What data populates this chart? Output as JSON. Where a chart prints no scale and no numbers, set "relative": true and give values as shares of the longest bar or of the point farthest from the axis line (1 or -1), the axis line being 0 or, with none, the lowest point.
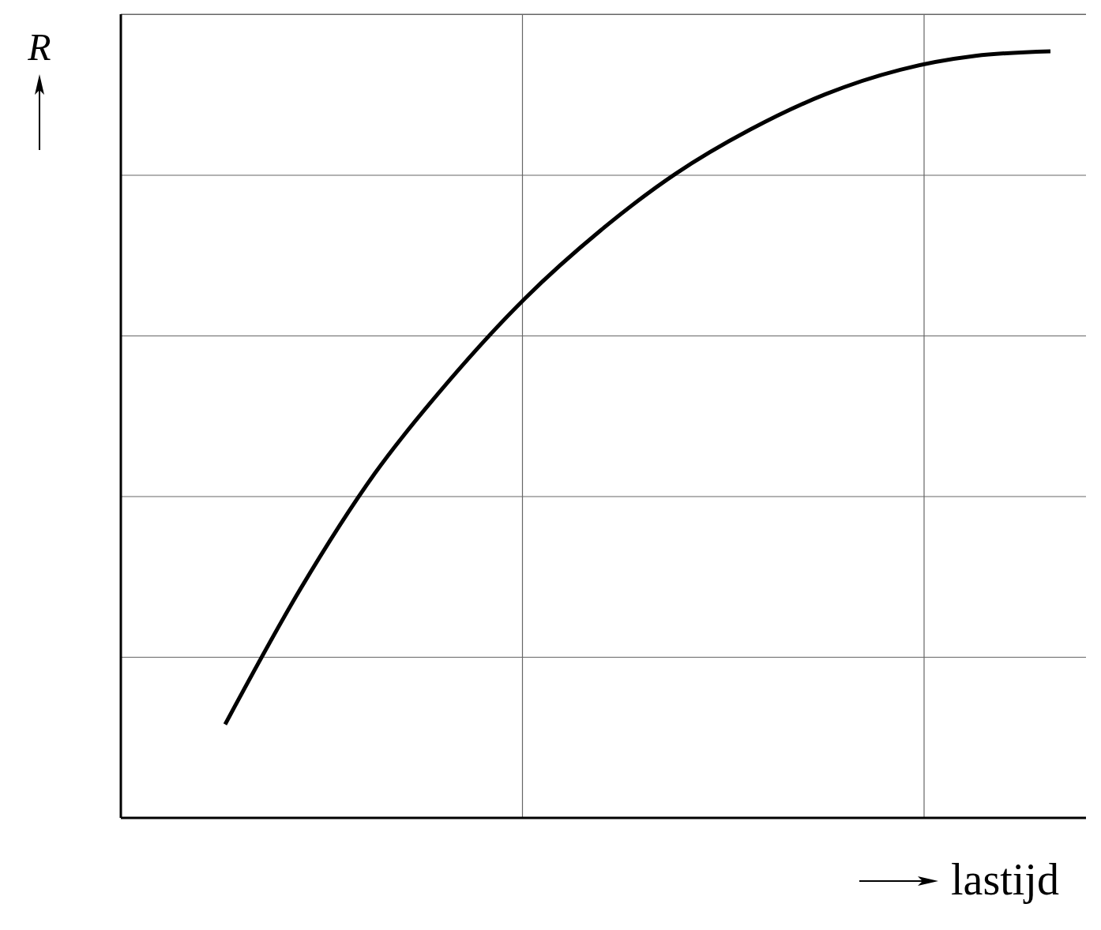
{
  "chart_data": {
    "type": "line",
    "relative": true,
    "xlabel": "lastijd",
    "ylabel": "R",
    "categories": [
      null,
      null,
      null,
      null,
      null,
      null,
      null,
      null,
      null,
      null,
      null,
      null
    ],
    "series": [
      {
        "color": "#000000",
        "values": [
          0.122,
          0.298,
          0.45,
          0.572,
          0.678,
          0.766,
          0.84,
          0.898,
          0.944,
          0.976,
          0.994,
          1.0
        ]
      }
    ],
    "grid": true,
    "line_style": "solid"
  }
}
